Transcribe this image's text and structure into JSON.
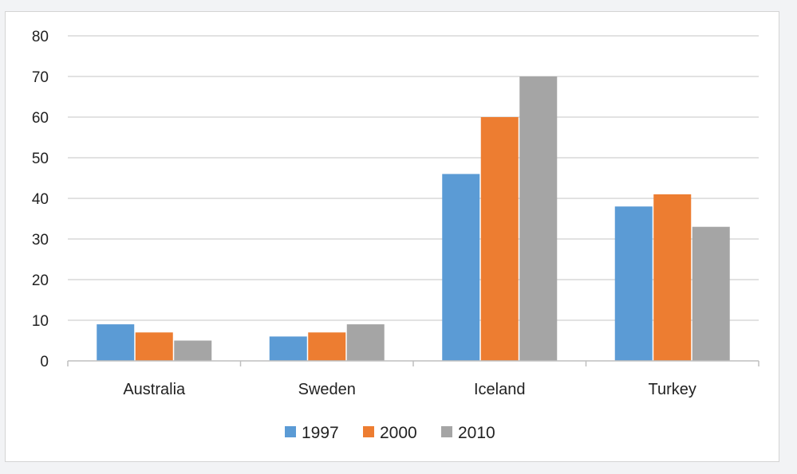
{
  "chart_data": {
    "type": "bar",
    "title": "",
    "xlabel": "",
    "ylabel": "",
    "categories": [
      "Australia",
      "Sweden",
      "Iceland",
      "Turkey"
    ],
    "series": [
      {
        "name": "1997",
        "color": "#5b9bd5",
        "values": [
          9,
          6,
          46,
          38
        ]
      },
      {
        "name": "2000",
        "color": "#ed7d31",
        "values": [
          7,
          7,
          60,
          41
        ]
      },
      {
        "name": "2010",
        "color": "#a5a5a5",
        "values": [
          5,
          9,
          70,
          33
        ]
      }
    ],
    "ylim": [
      0,
      80
    ],
    "yticks": [
      0,
      10,
      20,
      30,
      40,
      50,
      60,
      70,
      80
    ],
    "grid": true,
    "legend_position": "bottom"
  }
}
